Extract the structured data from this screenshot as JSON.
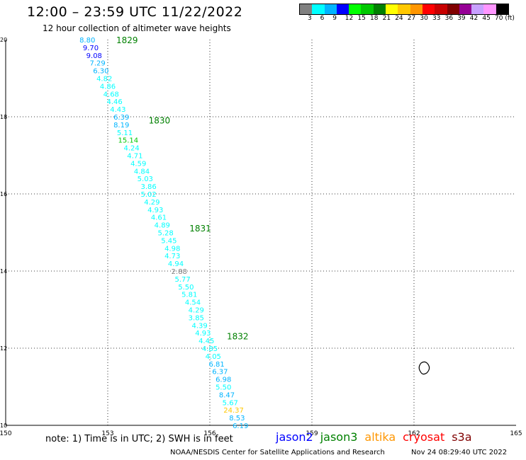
{
  "header": {
    "title": "12:00 – 23:59 UTC 11/22/2022",
    "subtitle": "12 hour collection of altimeter wave heights"
  },
  "colorbar": {
    "colors": [
      "#808080",
      "#00ffff",
      "#00b4ff",
      "#0000ff",
      "#00ff00",
      "#00c800",
      "#008000",
      "#ffff00",
      "#ffc800",
      "#ff9600",
      "#ff0000",
      "#c80000",
      "#800000",
      "#960096",
      "#c8a0ff",
      "#ff96ff",
      "#000000"
    ],
    "labels": [
      "3",
      "6",
      "9",
      "12",
      "15",
      "18",
      "21",
      "24",
      "27",
      "30",
      "33",
      "36",
      "39",
      "42",
      "45",
      "70 (ft)"
    ]
  },
  "axes": {
    "x_ticks": [
      "150",
      "153",
      "156",
      "159",
      "162",
      "165"
    ],
    "y_ticks": [
      "20",
      "18",
      "16",
      "14",
      "12",
      "10"
    ]
  },
  "track_labels": [
    {
      "text": "1829",
      "lon": 153.25,
      "lat": 19.98
    },
    {
      "text": "1830",
      "lon": 154.2,
      "lat": 17.9
    },
    {
      "text": "1831",
      "lon": 155.4,
      "lat": 15.1
    },
    {
      "text": "1832",
      "lon": 156.5,
      "lat": 12.3
    }
  ],
  "observations": [
    {
      "v": "8.80",
      "lon": 152.4,
      "lat": 20.0,
      "c": "#00b4ff"
    },
    {
      "v": "9.70",
      "lon": 152.5,
      "lat": 19.8,
      "c": "#0000ff"
    },
    {
      "v": "9.08",
      "lon": 152.6,
      "lat": 19.6,
      "c": "#0000ff"
    },
    {
      "v": "7.29",
      "lon": 152.7,
      "lat": 19.4,
      "c": "#00b4ff"
    },
    {
      "v": "6.30",
      "lon": 152.8,
      "lat": 19.2,
      "c": "#00b4ff"
    },
    {
      "v": "4.82",
      "lon": 152.9,
      "lat": 19.0,
      "c": "#00ffff"
    },
    {
      "v": "4.86",
      "lon": 153.0,
      "lat": 18.8,
      "c": "#00ffff"
    },
    {
      "v": "4.68",
      "lon": 153.1,
      "lat": 18.6,
      "c": "#00ffff"
    },
    {
      "v": "4.46",
      "lon": 153.2,
      "lat": 18.4,
      "c": "#00ffff"
    },
    {
      "v": "4.43",
      "lon": 153.3,
      "lat": 18.2,
      "c": "#00ffff"
    },
    {
      "v": "6.39",
      "lon": 153.4,
      "lat": 18.0,
      "c": "#00b4ff"
    },
    {
      "v": "8.19",
      "lon": 153.4,
      "lat": 17.8,
      "c": "#00b4ff"
    },
    {
      "v": "5.11",
      "lon": 153.5,
      "lat": 17.6,
      "c": "#00ffff"
    },
    {
      "v": "15.14",
      "lon": 153.6,
      "lat": 17.4,
      "c": "#00c800"
    },
    {
      "v": "4.24",
      "lon": 153.7,
      "lat": 17.2,
      "c": "#00ffff"
    },
    {
      "v": "4.71",
      "lon": 153.8,
      "lat": 17.0,
      "c": "#00ffff"
    },
    {
      "v": "4.59",
      "lon": 153.9,
      "lat": 16.8,
      "c": "#00ffff"
    },
    {
      "v": "4.84",
      "lon": 154.0,
      "lat": 16.6,
      "c": "#00ffff"
    },
    {
      "v": "5.03",
      "lon": 154.1,
      "lat": 16.4,
      "c": "#00ffff"
    },
    {
      "v": "3.86",
      "lon": 154.2,
      "lat": 16.2,
      "c": "#00ffff"
    },
    {
      "v": "5.02",
      "lon": 154.2,
      "lat": 16.0,
      "c": "#00ffff"
    },
    {
      "v": "4.29",
      "lon": 154.3,
      "lat": 15.8,
      "c": "#00ffff"
    },
    {
      "v": "4.93",
      "lon": 154.4,
      "lat": 15.6,
      "c": "#00ffff"
    },
    {
      "v": "4.61",
      "lon": 154.5,
      "lat": 15.4,
      "c": "#00ffff"
    },
    {
      "v": "4.89",
      "lon": 154.6,
      "lat": 15.2,
      "c": "#00ffff"
    },
    {
      "v": "5.28",
      "lon": 154.7,
      "lat": 15.0,
      "c": "#00ffff"
    },
    {
      "v": "5.45",
      "lon": 154.8,
      "lat": 14.8,
      "c": "#00ffff"
    },
    {
      "v": "4.98",
      "lon": 154.9,
      "lat": 14.6,
      "c": "#00ffff"
    },
    {
      "v": "4.73",
      "lon": 154.9,
      "lat": 14.4,
      "c": "#00ffff"
    },
    {
      "v": "4.94",
      "lon": 155.0,
      "lat": 14.2,
      "c": "#00ffff"
    },
    {
      "v": "2.88",
      "lon": 155.1,
      "lat": 14.0,
      "c": "#808080"
    },
    {
      "v": "5.77",
      "lon": 155.2,
      "lat": 13.8,
      "c": "#00ffff"
    },
    {
      "v": "5.50",
      "lon": 155.3,
      "lat": 13.6,
      "c": "#00ffff"
    },
    {
      "v": "5.81",
      "lon": 155.4,
      "lat": 13.4,
      "c": "#00ffff"
    },
    {
      "v": "4.54",
      "lon": 155.5,
      "lat": 13.2,
      "c": "#00ffff"
    },
    {
      "v": "4.29",
      "lon": 155.6,
      "lat": 13.0,
      "c": "#00ffff"
    },
    {
      "v": "3.85",
      "lon": 155.6,
      "lat": 12.8,
      "c": "#00ffff"
    },
    {
      "v": "4.39",
      "lon": 155.7,
      "lat": 12.6,
      "c": "#00ffff"
    },
    {
      "v": "4.93",
      "lon": 155.8,
      "lat": 12.4,
      "c": "#00ffff"
    },
    {
      "v": "4.45",
      "lon": 155.9,
      "lat": 12.2,
      "c": "#00ffff"
    },
    {
      "v": "4.85",
      "lon": 156.0,
      "lat": 12.0,
      "c": "#00ffff"
    },
    {
      "v": "4.05",
      "lon": 156.1,
      "lat": 11.8,
      "c": "#00ffff"
    },
    {
      "v": "6.81",
      "lon": 156.2,
      "lat": 11.6,
      "c": "#00b4ff"
    },
    {
      "v": "6.37",
      "lon": 156.3,
      "lat": 11.4,
      "c": "#00b4ff"
    },
    {
      "v": "6.98",
      "lon": 156.4,
      "lat": 11.2,
      "c": "#00b4ff"
    },
    {
      "v": "5.50",
      "lon": 156.4,
      "lat": 11.0,
      "c": "#00ffff"
    },
    {
      "v": "8.47",
      "lon": 156.5,
      "lat": 10.8,
      "c": "#00b4ff"
    },
    {
      "v": "5.67",
      "lon": 156.6,
      "lat": 10.6,
      "c": "#00ffff"
    },
    {
      "v": "24.37",
      "lon": 156.7,
      "lat": 10.4,
      "c": "#ffc800"
    },
    {
      "v": "8.53",
      "lon": 156.8,
      "lat": 10.2,
      "c": "#00b4ff"
    },
    {
      "v": "6.19",
      "lon": 156.9,
      "lat": 10.0,
      "c": "#00b4ff"
    }
  ],
  "island": {
    "name": "island-outline",
    "lon": 162.3,
    "lat": 11.5
  },
  "footer": {
    "note": "note:  1) Time is in UTC;  2) SWH is in feet",
    "satellites": [
      {
        "name": "jason2",
        "color": "#0000ff"
      },
      {
        "name": "jason3",
        "color": "#008000"
      },
      {
        "name": "altika",
        "color": "#ff9600"
      },
      {
        "name": "cryosat",
        "color": "#ff0000"
      },
      {
        "name": "s3a",
        "color": "#800000"
      }
    ],
    "credit": "NOAA/NESDIS Center for Satellite Applications and Research",
    "timestamp": "Nov 24 08:29:40 UTC 2022"
  }
}
